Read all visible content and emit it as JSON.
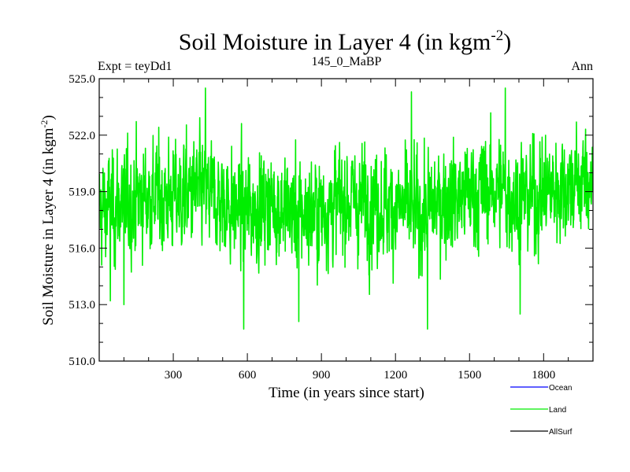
{
  "chart_data": {
    "type": "line",
    "title_main": "Soil Moisture in Layer 4 (in kgm",
    "title_sup": "-2",
    "title_close": ")",
    "subtitle_left": "Expt = teyDd1",
    "subtitle_center": "145_0_MaBP",
    "subtitle_right": "Ann",
    "ylabel_main": "Soil Moisture in Layer 4 (in kgm",
    "ylabel_sup": "-2",
    "ylabel_close": ")",
    "xlabel": "Time (in years since start)",
    "xlim": [
      0,
      2000
    ],
    "ylim": [
      510.0,
      525.0
    ],
    "xticks": [
      300,
      600,
      900,
      1200,
      1500,
      1800
    ],
    "xtick_labels": [
      "300",
      "600",
      "900",
      "1200",
      "1500",
      "1800"
    ],
    "yticks": [
      510.0,
      513.0,
      516.0,
      519.0,
      522.0,
      525.0
    ],
    "ytick_labels": [
      "510.0",
      "513.0",
      "516.0",
      "519.0",
      "522.0",
      "525.0"
    ],
    "legend": [
      {
        "name": "Ocean",
        "color": "#0000ff"
      },
      {
        "name": "Land",
        "color": "#00ee00"
      },
      {
        "name": "AllSurf",
        "color": "#000000"
      }
    ],
    "series": [
      {
        "name": "Land",
        "color": "#00ee00",
        "n_points": 2000,
        "mean": 518.4,
        "std": 1.6,
        "min": 511.7,
        "max": 524.5,
        "envelope_x": [
          0,
          100,
          200,
          300,
          400,
          500,
          600,
          700,
          800,
          900,
          1000,
          1100,
          1200,
          1300,
          1400,
          1500,
          1600,
          1700,
          1800,
          1900,
          2000
        ],
        "envelope_mean": [
          518.0,
          518.4,
          518.8,
          518.6,
          519.0,
          518.4,
          518.0,
          518.4,
          517.8,
          518.0,
          518.6,
          518.4,
          518.2,
          517.8,
          518.6,
          518.8,
          519.2,
          518.6,
          519.0,
          519.4,
          519.6
        ],
        "extremes": [
          {
            "x": 45,
            "y": 513.2
          },
          {
            "x": 100,
            "y": 513.0
          },
          {
            "x": 430,
            "y": 524.5
          },
          {
            "x": 585,
            "y": 511.7
          },
          {
            "x": 808,
            "y": 512.1
          },
          {
            "x": 1265,
            "y": 524.3
          },
          {
            "x": 1330,
            "y": 511.6
          },
          {
            "x": 1645,
            "y": 524.5
          },
          {
            "x": 1705,
            "y": 512.5
          }
        ]
      }
    ]
  }
}
